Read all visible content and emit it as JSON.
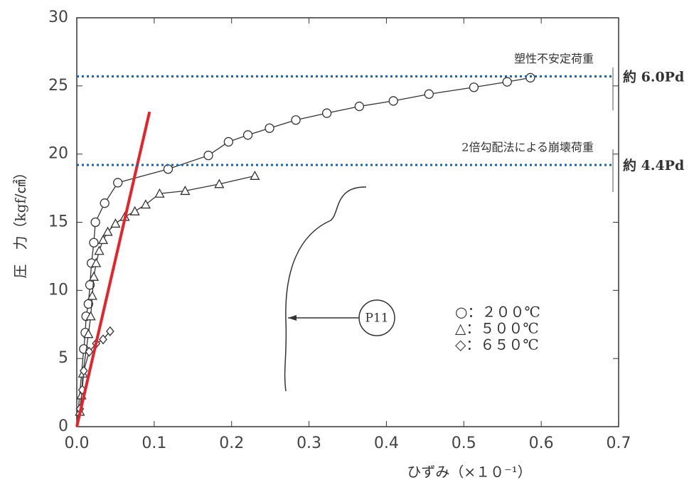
{
  "chart_data": {
    "type": "line",
    "xlabel": "ひずみ（×１０⁻¹）",
    "ylabel": "圧　力（kgf/㎠）",
    "xlim": [
      0,
      0.7
    ],
    "ylim": [
      0,
      30
    ],
    "xticks": [
      {
        "value": 0,
        "label": "0.0"
      },
      0.1,
      0.2,
      0.3,
      0.4,
      0.5,
      0.6,
      0.7
    ],
    "yticks": [
      0,
      5,
      10,
      15,
      20,
      25,
      30
    ],
    "series": [
      {
        "name": "○：２００℃",
        "marker": "circle",
        "color": "#333333",
        "x": [
          0,
          0.009,
          0.011,
          0.012,
          0.015,
          0.017,
          0.019,
          0.022,
          0.024,
          0.036,
          0.053,
          0.118,
          0.17,
          0.196,
          0.221,
          0.249,
          0.283,
          0.323,
          0.365,
          0.409,
          0.455,
          0.513,
          0.556,
          0.586
        ],
        "values": [
          0,
          5.7,
          6.9,
          8.1,
          9.0,
          10.4,
          12,
          13.5,
          15,
          16.4,
          17.9,
          18.9,
          19.9,
          20.9,
          21.4,
          21.9,
          22.5,
          23,
          23.5,
          23.9,
          24.4,
          24.9,
          25.3,
          25.6
        ]
      },
      {
        "name": "△：５００℃",
        "marker": "triangle",
        "color": "#333333",
        "x": [
          0,
          0.004,
          0.006,
          0.008,
          0.015,
          0.018,
          0.02,
          0.022,
          0.025,
          0.029,
          0.034,
          0.04,
          0.05,
          0.062,
          0.075,
          0.089,
          0.107,
          0.14,
          0.184,
          0.23
        ],
        "values": [
          0,
          1.1,
          2.3,
          3.9,
          6.8,
          8.1,
          9.6,
          11,
          12,
          12.9,
          13.7,
          14.3,
          14.9,
          15.4,
          15.8,
          16.3,
          17.1,
          17.3,
          17.8,
          18.4
        ]
      },
      {
        "name": "◇：６５０℃",
        "marker": "diamond",
        "color": "#333333",
        "x": [
          0,
          0.004,
          0.007,
          0.009,
          0.016,
          0.025,
          0.034,
          0.043
        ],
        "values": [
          0,
          1.3,
          2.7,
          4.1,
          5.5,
          6.1,
          6.4,
          7.0
        ]
      }
    ],
    "reference_line": {
      "color": "#e8222a",
      "x": [
        0,
        0.094
      ],
      "values": [
        0,
        23.1
      ]
    },
    "hlines": [
      {
        "value": 25.7,
        "label": "塑性不安定荷重",
        "note": "約 6.0Pd",
        "color": "#1f5fa8"
      },
      {
        "value": 19.2,
        "label": "2倍勾配法による崩壊荷重",
        "note": "約 4.4Pd",
        "color": "#1f5fa8"
      }
    ],
    "annotation": "P11"
  }
}
